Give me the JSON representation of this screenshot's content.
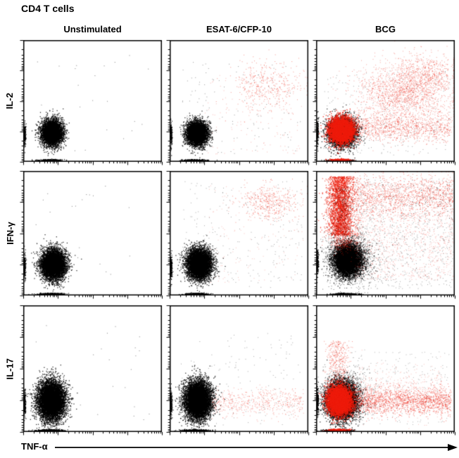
{
  "title": "CD4 T cells",
  "columns": [
    "Unstimulated",
    "ESAT-6/CFP-10",
    "BCG"
  ],
  "rows": [
    "IL-2",
    "IFN-γ",
    "IL-17"
  ],
  "x_axis": {
    "label": "TNF-α"
  },
  "colors": {
    "background": "#ffffff",
    "plot_border": "#000000",
    "dot_black": "#000000",
    "dot_red": "#ee1c0c"
  },
  "chart_data": {
    "type": "scatter",
    "title": "CD4 T cells",
    "x_variable": "TNF-α",
    "y_variables": [
      "IL-2",
      "IFN-γ",
      "IL-17"
    ],
    "conditions": [
      "Unstimulated",
      "ESAT-6/CFP-10",
      "BCG"
    ],
    "axes": "log-style flow-cytometry axes, 4 unlabeled decades per axis, tick marks only",
    "legend": "black = bulk CD4 T cells, red = cytokine-responding cells",
    "coords_note": "cluster coordinates are fractions of plot box: x from left edge, y from top edge",
    "panels": [
      {
        "row": "IL-2",
        "column": "Unstimulated",
        "clusters": [
          {
            "name": "double-negative main population",
            "color": "black",
            "shape": "gauss",
            "n": 5200,
            "cx": 0.205,
            "cy": 0.765,
            "sx": 0.038,
            "sy": 0.052,
            "alpha": 0.9,
            "size": 1.2
          },
          {
            "name": "axis pile bottom",
            "color": "black",
            "shape": "gauss",
            "n": 320,
            "cx": 0.19,
            "cy": 0.995,
            "sx": 0.045,
            "sy": 0.004,
            "alpha": 0.9,
            "size": 1.2
          },
          {
            "name": "axis pile left",
            "color": "black",
            "shape": "gauss",
            "n": 160,
            "cx": 0.006,
            "cy": 0.78,
            "sx": 0.004,
            "sy": 0.05,
            "alpha": 0.9,
            "size": 1.2
          },
          {
            "name": "stray events",
            "color": "black",
            "shape": "uniform",
            "n": 22,
            "x0": 0.05,
            "x1": 0.92,
            "y0": 0.1,
            "y1": 0.92,
            "alpha": 0.5,
            "size": 1
          }
        ]
      },
      {
        "row": "IL-2",
        "column": "ESAT-6/CFP-10",
        "clusters": [
          {
            "name": "double-negative main population",
            "color": "black",
            "shape": "gauss",
            "n": 5200,
            "cx": 0.195,
            "cy": 0.77,
            "sx": 0.037,
            "sy": 0.05,
            "alpha": 0.9,
            "size": 1.2
          },
          {
            "name": "TNFα+IL-2+ responder cloud",
            "color": "red",
            "shape": "gauss",
            "n": 420,
            "cx": 0.7,
            "cy": 0.37,
            "sx": 0.125,
            "sy": 0.1,
            "alpha": 0.45,
            "size": 1
          },
          {
            "name": "sparse red scatter",
            "color": "red",
            "shape": "uniform",
            "n": 130,
            "x0": 0.25,
            "x1": 0.97,
            "y0": 0.28,
            "y1": 0.95,
            "alpha": 0.3,
            "size": 1
          },
          {
            "name": "sparse black scatter",
            "color": "black",
            "shape": "uniform",
            "n": 100,
            "x0": 0.08,
            "x1": 0.95,
            "y0": 0.15,
            "y1": 0.95,
            "alpha": 0.4,
            "size": 1
          },
          {
            "name": "axis pile bottom",
            "color": "black",
            "shape": "gauss",
            "n": 320,
            "cx": 0.18,
            "cy": 0.995,
            "sx": 0.045,
            "sy": 0.004,
            "alpha": 0.9,
            "size": 1.2
          },
          {
            "name": "axis pile left",
            "color": "black",
            "shape": "gauss",
            "n": 160,
            "cx": 0.006,
            "cy": 0.78,
            "sx": 0.004,
            "sy": 0.05,
            "alpha": 0.9,
            "size": 1.2
          }
        ]
      },
      {
        "row": "IL-2",
        "column": "BCG",
        "clusters": [
          {
            "name": "black base population",
            "color": "black",
            "shape": "gauss",
            "n": 4500,
            "cx": 0.185,
            "cy": 0.76,
            "sx": 0.05,
            "sy": 0.058,
            "alpha": 0.9,
            "size": 1.2
          },
          {
            "name": "red responder core",
            "color": "red",
            "shape": "gauss",
            "n": 5200,
            "cx": 0.18,
            "cy": 0.745,
            "sx": 0.043,
            "sy": 0.05,
            "alpha": 0.9,
            "size": 1.3
          },
          {
            "name": "TNFα+ single-positive band",
            "color": "red",
            "shape": "hband",
            "n": 950,
            "x0": 0.26,
            "x1": 0.98,
            "cy": 0.72,
            "sy": 0.06,
            "alpha": 0.5,
            "size": 1
          },
          {
            "name": "TNFα+IL-2+ diffuse cloud",
            "color": "red",
            "shape": "gauss",
            "n": 1700,
            "cx": 0.62,
            "cy": 0.44,
            "sx": 0.17,
            "sy": 0.13,
            "alpha": 0.4,
            "size": 1
          },
          {
            "name": "upper-right red cloud",
            "color": "red",
            "shape": "gauss",
            "n": 500,
            "cx": 0.82,
            "cy": 0.28,
            "sx": 0.1,
            "sy": 0.09,
            "alpha": 0.45,
            "size": 1
          },
          {
            "name": "sparse black scatter",
            "color": "black",
            "shape": "uniform",
            "n": 260,
            "x0": 0.05,
            "x1": 0.97,
            "y0": 0.25,
            "y1": 0.95,
            "alpha": 0.35,
            "size": 1
          },
          {
            "name": "axis pile bottom",
            "color": "black",
            "shape": "gauss",
            "n": 320,
            "cx": 0.17,
            "cy": 0.995,
            "sx": 0.045,
            "sy": 0.004,
            "alpha": 0.9,
            "size": 1.2
          },
          {
            "name": "axis pile bottom red",
            "color": "red",
            "shape": "gauss",
            "n": 220,
            "cx": 0.17,
            "cy": 0.99,
            "sx": 0.04,
            "sy": 0.004,
            "alpha": 0.9,
            "size": 1.2
          },
          {
            "name": "axis pile left",
            "color": "black",
            "shape": "gauss",
            "n": 160,
            "cx": 0.006,
            "cy": 0.76,
            "sx": 0.004,
            "sy": 0.05,
            "alpha": 0.9,
            "size": 1.2
          }
        ]
      },
      {
        "row": "IFN-γ",
        "column": "Unstimulated",
        "clusters": [
          {
            "name": "double-negative main population",
            "color": "black",
            "shape": "gauss",
            "n": 6200,
            "cx": 0.215,
            "cy": 0.755,
            "sx": 0.045,
            "sy": 0.06,
            "alpha": 0.92,
            "size": 1.2
          },
          {
            "name": "stray events",
            "color": "black",
            "shape": "uniform",
            "n": 22,
            "x0": 0.05,
            "x1": 0.92,
            "y0": 0.1,
            "y1": 0.92,
            "alpha": 0.5,
            "size": 1
          },
          {
            "name": "axis pile bottom",
            "color": "black",
            "shape": "gauss",
            "n": 340,
            "cx": 0.2,
            "cy": 0.995,
            "sx": 0.045,
            "sy": 0.004,
            "alpha": 0.9,
            "size": 1.2
          },
          {
            "name": "axis pile left",
            "color": "black",
            "shape": "gauss",
            "n": 160,
            "cx": 0.006,
            "cy": 0.77,
            "sx": 0.004,
            "sy": 0.05,
            "alpha": 0.9,
            "size": 1.2
          }
        ]
      },
      {
        "row": "IFN-γ",
        "column": "ESAT-6/CFP-10",
        "clusters": [
          {
            "name": "double-negative main population",
            "color": "black",
            "shape": "gauss",
            "n": 6300,
            "cx": 0.21,
            "cy": 0.75,
            "sx": 0.045,
            "sy": 0.062,
            "alpha": 0.92,
            "size": 1.2
          },
          {
            "name": "TNFα+IFNγ+ responder cloud",
            "color": "red",
            "shape": "gauss",
            "n": 430,
            "cx": 0.72,
            "cy": 0.25,
            "sx": 0.105,
            "sy": 0.068,
            "alpha": 0.45,
            "size": 1
          },
          {
            "name": "sparse black scatter",
            "color": "black",
            "shape": "uniform",
            "n": 230,
            "x0": 0.08,
            "x1": 0.97,
            "y0": 0.08,
            "y1": 0.95,
            "alpha": 0.35,
            "size": 1
          },
          {
            "name": "sparse red scatter",
            "color": "red",
            "shape": "uniform",
            "n": 150,
            "x0": 0.28,
            "x1": 0.97,
            "y0": 0.1,
            "y1": 0.9,
            "alpha": 0.28,
            "size": 1
          },
          {
            "name": "axis pile bottom",
            "color": "black",
            "shape": "gauss",
            "n": 340,
            "cx": 0.19,
            "cy": 0.995,
            "sx": 0.045,
            "sy": 0.004,
            "alpha": 0.9,
            "size": 1.2
          },
          {
            "name": "axis pile left",
            "color": "black",
            "shape": "gauss",
            "n": 160,
            "cx": 0.006,
            "cy": 0.77,
            "sx": 0.004,
            "sy": 0.05,
            "alpha": 0.9,
            "size": 1.2
          }
        ]
      },
      {
        "row": "IFN-γ",
        "column": "BCG",
        "clusters": [
          {
            "name": "black main population",
            "color": "black",
            "shape": "gauss",
            "n": 6000,
            "cx": 0.225,
            "cy": 0.72,
            "sx": 0.05,
            "sy": 0.062,
            "alpha": 0.92,
            "size": 1.2
          },
          {
            "name": "black halo",
            "color": "black",
            "shape": "gauss",
            "n": 1900,
            "cx": 0.24,
            "cy": 0.7,
            "sx": 0.09,
            "sy": 0.1,
            "alpha": 0.55,
            "size": 1
          },
          {
            "name": "IFNγ+TNFα− red column",
            "color": "red",
            "shape": "vband",
            "n": 2700,
            "cx": 0.175,
            "sx": 0.048,
            "y0": 0.04,
            "y1": 0.52,
            "alpha": 0.7,
            "size": 1.2
          },
          {
            "name": "black speckle in column",
            "color": "black",
            "shape": "vband",
            "n": 320,
            "cx": 0.18,
            "sx": 0.045,
            "y0": 0.12,
            "y1": 0.52,
            "alpha": 0.4,
            "size": 1
          },
          {
            "name": "IFNγ+TNFα+ top band",
            "color": "red",
            "shape": "hband",
            "n": 1350,
            "x0": 0.28,
            "x1": 0.995,
            "cy": 0.2,
            "sy": 0.085,
            "alpha": 0.5,
            "size": 1
          },
          {
            "name": "diffuse red scatter",
            "color": "red",
            "shape": "uniform",
            "n": 950,
            "x0": 0.28,
            "x1": 0.995,
            "y0": 0.3,
            "y1": 0.88,
            "alpha": 0.3,
            "size": 1
          },
          {
            "name": "diffuse black scatter",
            "color": "black",
            "shape": "uniform",
            "n": 750,
            "x0": 0.28,
            "x1": 0.995,
            "y0": 0.05,
            "y1": 0.95,
            "alpha": 0.35,
            "size": 1
          },
          {
            "name": "red/black transition zone",
            "color": "red",
            "shape": "gauss",
            "n": 380,
            "cx": 0.2,
            "cy": 0.56,
            "sx": 0.055,
            "sy": 0.05,
            "alpha": 0.5,
            "size": 1
          },
          {
            "name": "axis pile bottom",
            "color": "black",
            "shape": "gauss",
            "n": 340,
            "cx": 0.21,
            "cy": 0.995,
            "sx": 0.045,
            "sy": 0.004,
            "alpha": 0.9,
            "size": 1.2
          },
          {
            "name": "axis pile left",
            "color": "black",
            "shape": "gauss",
            "n": 160,
            "cx": 0.006,
            "cy": 0.74,
            "sx": 0.004,
            "sy": 0.05,
            "alpha": 0.9,
            "size": 1.2
          }
        ]
      },
      {
        "row": "IL-17",
        "column": "Unstimulated",
        "clusters": [
          {
            "name": "double-negative main population",
            "color": "black",
            "shape": "gauss",
            "n": 7800,
            "cx": 0.2,
            "cy": 0.755,
            "sx": 0.05,
            "sy": 0.077,
            "alpha": 0.92,
            "size": 1.2
          },
          {
            "name": "stray events",
            "color": "black",
            "shape": "uniform",
            "n": 26,
            "x0": 0.05,
            "x1": 0.92,
            "y0": 0.1,
            "y1": 0.92,
            "alpha": 0.5,
            "size": 1
          },
          {
            "name": "axis pile bottom",
            "color": "black",
            "shape": "gauss",
            "n": 400,
            "cx": 0.19,
            "cy": 0.995,
            "sx": 0.05,
            "sy": 0.004,
            "alpha": 0.9,
            "size": 1.2
          },
          {
            "name": "axis pile left",
            "color": "black",
            "shape": "gauss",
            "n": 170,
            "cx": 0.006,
            "cy": 0.78,
            "sx": 0.004,
            "sy": 0.05,
            "alpha": 0.9,
            "size": 1.2
          }
        ]
      },
      {
        "row": "IL-17",
        "column": "ESAT-6/CFP-10",
        "clusters": [
          {
            "name": "double-negative main population",
            "color": "black",
            "shape": "gauss",
            "n": 7800,
            "cx": 0.2,
            "cy": 0.75,
            "sx": 0.048,
            "sy": 0.075,
            "alpha": 0.92,
            "size": 1.2
          },
          {
            "name": "TNFα+IL-17− red band",
            "color": "red",
            "shape": "hband",
            "n": 540,
            "x0": 0.3,
            "x1": 0.97,
            "cy": 0.77,
            "sy": 0.055,
            "alpha": 0.38,
            "size": 1
          },
          {
            "name": "sparse black scatter",
            "color": "black",
            "shape": "uniform",
            "n": 130,
            "x0": 0.06,
            "x1": 0.95,
            "y0": 0.2,
            "y1": 0.95,
            "alpha": 0.35,
            "size": 1
          },
          {
            "name": "axis pile bottom",
            "color": "black",
            "shape": "gauss",
            "n": 400,
            "cx": 0.19,
            "cy": 0.995,
            "sx": 0.05,
            "sy": 0.004,
            "alpha": 0.9,
            "size": 1.2
          },
          {
            "name": "axis pile left",
            "color": "black",
            "shape": "gauss",
            "n": 170,
            "cx": 0.006,
            "cy": 0.78,
            "sx": 0.004,
            "sy": 0.05,
            "alpha": 0.9,
            "size": 1.2
          }
        ]
      },
      {
        "row": "IL-17",
        "column": "BCG",
        "clusters": [
          {
            "name": "black base population",
            "color": "black",
            "shape": "gauss",
            "n": 6000,
            "cx": 0.18,
            "cy": 0.755,
            "sx": 0.055,
            "sy": 0.072,
            "alpha": 0.92,
            "size": 1.2
          },
          {
            "name": "black halo",
            "color": "black",
            "shape": "gauss",
            "n": 1300,
            "cx": 0.2,
            "cy": 0.72,
            "sx": 0.085,
            "sy": 0.1,
            "alpha": 0.5,
            "size": 1
          },
          {
            "name": "red responder core",
            "color": "red",
            "shape": "gauss",
            "n": 5600,
            "cx": 0.165,
            "cy": 0.755,
            "sx": 0.042,
            "sy": 0.055,
            "alpha": 0.9,
            "size": 1.3
          },
          {
            "name": "TNFα+IL-17− red band",
            "color": "red",
            "shape": "hband",
            "n": 1700,
            "x0": 0.24,
            "x1": 0.98,
            "cy": 0.76,
            "sy": 0.055,
            "alpha": 0.55,
            "size": 1
          },
          {
            "name": "diffuse band halo",
            "color": "red",
            "shape": "hband",
            "n": 450,
            "x0": 0.3,
            "x1": 0.92,
            "cy": 0.68,
            "sy": 0.1,
            "alpha": 0.28,
            "size": 1
          },
          {
            "name": "IL-17+ red plume",
            "color": "red",
            "shape": "vband",
            "n": 380,
            "cx": 0.155,
            "sx": 0.042,
            "y0": 0.28,
            "y1": 0.6,
            "alpha": 0.45,
            "size": 1
          },
          {
            "name": "sparse black scatter",
            "color": "black",
            "shape": "uniform",
            "n": 220,
            "x0": 0.25,
            "x1": 0.97,
            "y0": 0.35,
            "y1": 0.95,
            "alpha": 0.3,
            "size": 1
          },
          {
            "name": "axis pile bottom",
            "color": "black",
            "shape": "gauss",
            "n": 420,
            "cx": 0.16,
            "cy": 0.995,
            "sx": 0.05,
            "sy": 0.004,
            "alpha": 0.9,
            "size": 1.2
          },
          {
            "name": "axis pile bottom red",
            "color": "red",
            "shape": "gauss",
            "n": 250,
            "cx": 0.16,
            "cy": 0.99,
            "sx": 0.04,
            "sy": 0.004,
            "alpha": 0.9,
            "size": 1.2
          },
          {
            "name": "axis pile left",
            "color": "black",
            "shape": "gauss",
            "n": 170,
            "cx": 0.006,
            "cy": 0.77,
            "sx": 0.004,
            "sy": 0.05,
            "alpha": 0.9,
            "size": 1.2
          }
        ]
      }
    ]
  }
}
